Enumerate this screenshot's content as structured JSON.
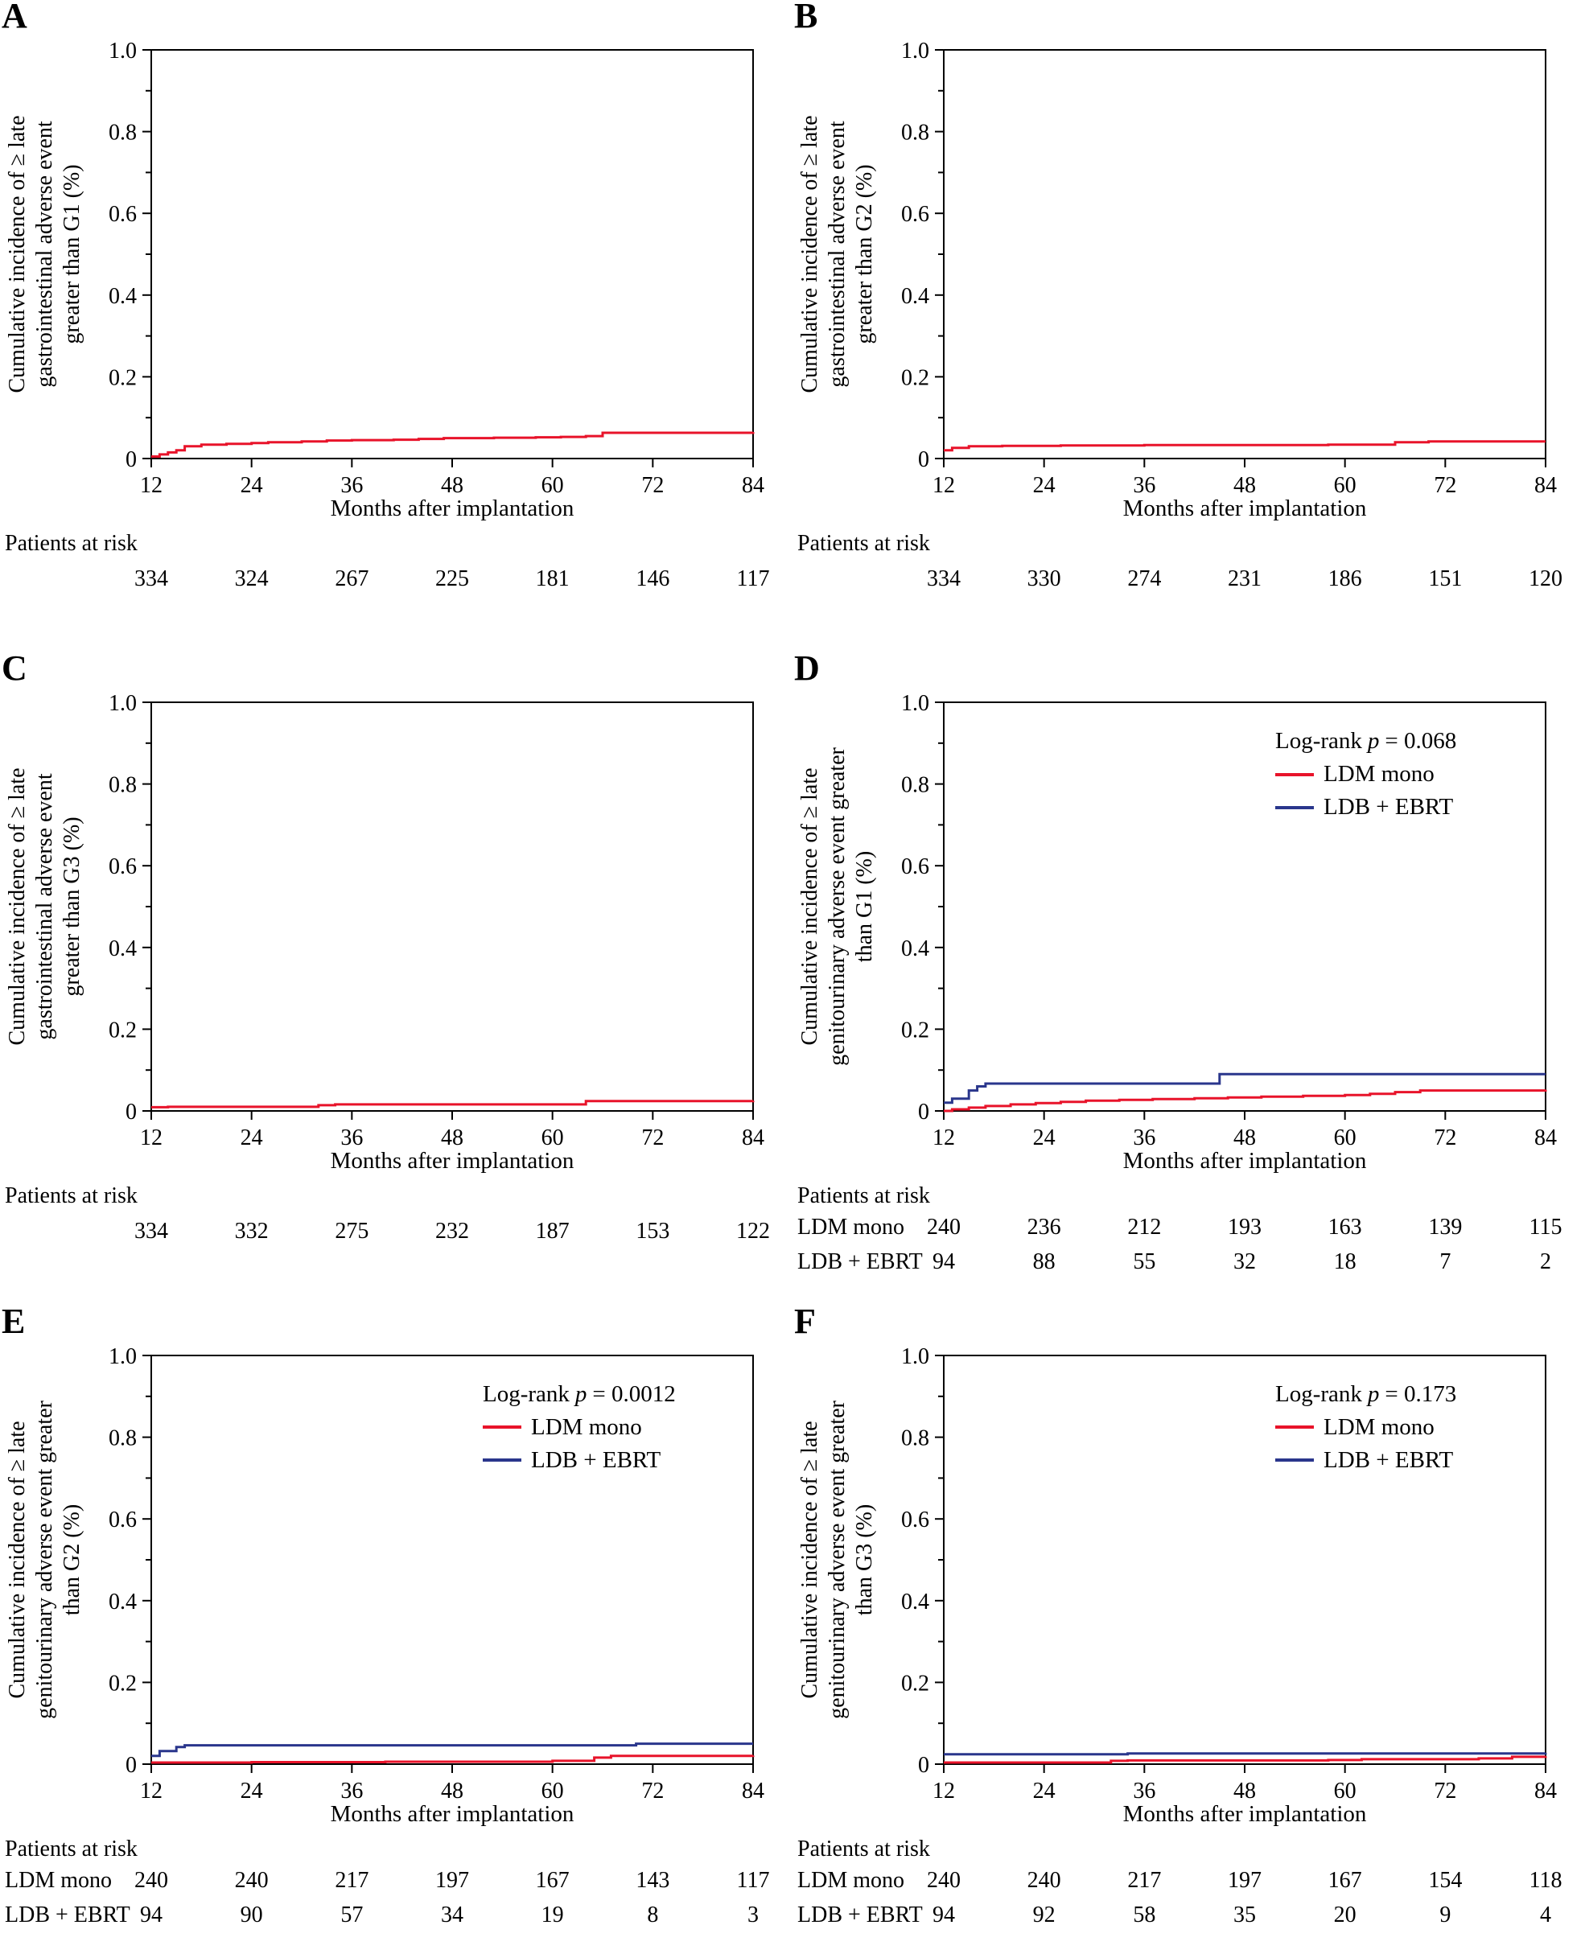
{
  "figure": {
    "patients_at_risk_label": "Patients at risk",
    "colors": {
      "red": "#e8132a",
      "blue": "#2a368c",
      "axis": "#000000"
    }
  },
  "chart_data": [
    {
      "panel": "A",
      "type": "line",
      "step": true,
      "xlabel": "Months after implantation",
      "ylabel_lines": [
        "Cumulative incidence of ≥ late",
        "gastrointestinal adverse event",
        "greater than G1 (%)"
      ],
      "xlim": [
        12,
        84
      ],
      "ylim": [
        0,
        1
      ],
      "xticks": [
        12,
        24,
        36,
        48,
        60,
        72,
        84
      ],
      "yticks": [
        0,
        0.2,
        0.4,
        0.6,
        0.8,
        1.0
      ],
      "ytick_labels": [
        "0",
        "0.2",
        "0.4",
        "0.6",
        "0.8",
        "1.0"
      ],
      "yticks_minor": [
        0.1,
        0.3,
        0.5,
        0.7,
        0.9
      ],
      "series": [
        {
          "name": "",
          "color": "red",
          "points": [
            [
              12,
              0.005
            ],
            [
              13,
              0.01
            ],
            [
              14,
              0.015
            ],
            [
              15,
              0.02
            ],
            [
              16,
              0.03
            ],
            [
              18,
              0.034
            ],
            [
              21,
              0.036
            ],
            [
              24,
              0.038
            ],
            [
              26,
              0.04
            ],
            [
              30,
              0.042
            ],
            [
              33,
              0.044
            ],
            [
              36,
              0.045
            ],
            [
              41,
              0.046
            ],
            [
              44,
              0.048
            ],
            [
              47,
              0.05
            ],
            [
              53,
              0.051
            ],
            [
              58,
              0.052
            ],
            [
              61,
              0.053
            ],
            [
              64,
              0.055
            ],
            [
              66,
              0.063
            ],
            [
              84,
              0.065
            ]
          ]
        }
      ],
      "risk_rows": [
        {
          "label": "",
          "values": [
            334,
            324,
            267,
            225,
            181,
            146,
            117
          ]
        }
      ]
    },
    {
      "panel": "B",
      "type": "line",
      "step": true,
      "xlabel": "Months after implantation",
      "ylabel_lines": [
        "Cumulative incidence of ≥ late",
        "gastrointestinal adverse event",
        "greater than G2 (%)"
      ],
      "xlim": [
        12,
        84
      ],
      "ylim": [
        0,
        1
      ],
      "xticks": [
        12,
        24,
        36,
        48,
        60,
        72,
        84
      ],
      "yticks": [
        0,
        0.2,
        0.4,
        0.6,
        0.8,
        1.0
      ],
      "ytick_labels": [
        "0",
        "0.2",
        "0.4",
        "0.6",
        "0.8",
        "1.0"
      ],
      "yticks_minor": [
        0.1,
        0.3,
        0.5,
        0.7,
        0.9
      ],
      "series": [
        {
          "name": "",
          "color": "red",
          "points": [
            [
              12,
              0.02
            ],
            [
              13,
              0.026
            ],
            [
              15,
              0.03
            ],
            [
              19,
              0.031
            ],
            [
              26,
              0.032
            ],
            [
              36,
              0.033
            ],
            [
              48,
              0.033
            ],
            [
              58,
              0.034
            ],
            [
              66,
              0.04
            ],
            [
              70,
              0.042
            ],
            [
              84,
              0.042
            ]
          ]
        }
      ],
      "risk_rows": [
        {
          "label": "",
          "values": [
            334,
            330,
            274,
            231,
            186,
            151,
            120
          ]
        }
      ]
    },
    {
      "panel": "C",
      "type": "line",
      "step": true,
      "xlabel": "Months after implantation",
      "ylabel_lines": [
        "Cumulative incidence of ≥ late",
        "gastrointestinal adverse event",
        "greater than G3 (%)"
      ],
      "xlim": [
        12,
        84
      ],
      "ylim": [
        0,
        1
      ],
      "xticks": [
        12,
        24,
        36,
        48,
        60,
        72,
        84
      ],
      "yticks": [
        0,
        0.2,
        0.4,
        0.6,
        0.8,
        1.0
      ],
      "ytick_labels": [
        "0",
        "0.2",
        "0.4",
        "0.6",
        "0.8",
        "1.0"
      ],
      "yticks_minor": [
        0.1,
        0.3,
        0.5,
        0.7,
        0.9
      ],
      "series": [
        {
          "name": "",
          "color": "red",
          "points": [
            [
              12,
              0.009
            ],
            [
              14,
              0.01
            ],
            [
              32,
              0.014
            ],
            [
              34,
              0.016
            ],
            [
              64,
              0.024
            ],
            [
              84,
              0.025
            ]
          ]
        }
      ],
      "risk_rows": [
        {
          "label": "",
          "values": [
            334,
            332,
            275,
            232,
            187,
            153,
            122
          ]
        }
      ]
    },
    {
      "panel": "D",
      "type": "line",
      "step": true,
      "xlabel": "Months after implantation",
      "ylabel_lines": [
        "Cumulative incidence of ≥ late",
        "genitourinary adverse event greater",
        "than G1 (%)"
      ],
      "xlim": [
        12,
        84
      ],
      "ylim": [
        0,
        1
      ],
      "xticks": [
        12,
        24,
        36,
        48,
        60,
        72,
        84
      ],
      "yticks": [
        0,
        0.2,
        0.4,
        0.6,
        0.8,
        1.0
      ],
      "ytick_labels": [
        "0",
        "0.2",
        "0.4",
        "0.6",
        "0.8",
        "1.0"
      ],
      "yticks_minor": [
        0.1,
        0.3,
        0.5,
        0.7,
        0.9
      ],
      "legend": {
        "prefix": "Log-rank",
        "pvar": "p",
        "value": "= 0.068",
        "items": [
          {
            "label": "LDM mono",
            "color": "red"
          },
          {
            "label": "LDB + EBRT",
            "color": "blue"
          }
        ]
      },
      "series": [
        {
          "name": "LDM mono",
          "color": "red",
          "points": [
            [
              12,
              0.0
            ],
            [
              13,
              0.004
            ],
            [
              15,
              0.008
            ],
            [
              17,
              0.012
            ],
            [
              20,
              0.016
            ],
            [
              23,
              0.019
            ],
            [
              26,
              0.022
            ],
            [
              29,
              0.025
            ],
            [
              33,
              0.027
            ],
            [
              37,
              0.029
            ],
            [
              42,
              0.031
            ],
            [
              46,
              0.033
            ],
            [
              50,
              0.035
            ],
            [
              55,
              0.037
            ],
            [
              60,
              0.039
            ],
            [
              63,
              0.042
            ],
            [
              66,
              0.046
            ],
            [
              69,
              0.05
            ],
            [
              84,
              0.052
            ]
          ]
        },
        {
          "name": "LDB + EBRT",
          "color": "blue",
          "points": [
            [
              12,
              0.02
            ],
            [
              13,
              0.03
            ],
            [
              15,
              0.05
            ],
            [
              16,
              0.06
            ],
            [
              17,
              0.067
            ],
            [
              45,
              0.09
            ],
            [
              84,
              0.09
            ]
          ]
        }
      ],
      "risk_rows": [
        {
          "label": "LDM mono",
          "values": [
            240,
            236,
            212,
            193,
            163,
            139,
            115
          ]
        },
        {
          "label": "LDB + EBRT",
          "values": [
            94,
            88,
            55,
            32,
            18,
            7,
            2
          ]
        }
      ]
    },
    {
      "panel": "E",
      "type": "line",
      "step": true,
      "xlabel": "Months after implantation",
      "ylabel_lines": [
        "Cumulative incidence of ≥ late",
        "genitourinary adverse event greater",
        "than G2 (%)"
      ],
      "xlim": [
        12,
        84
      ],
      "ylim": [
        0,
        1
      ],
      "xticks": [
        12,
        24,
        36,
        48,
        60,
        72,
        84
      ],
      "yticks": [
        0,
        0.2,
        0.4,
        0.6,
        0.8,
        1.0
      ],
      "ytick_labels": [
        "0",
        "0.2",
        "0.4",
        "0.6",
        "0.8",
        "1.0"
      ],
      "yticks_minor": [
        0.1,
        0.3,
        0.5,
        0.7,
        0.9
      ],
      "legend": {
        "prefix": "Log-rank",
        "pvar": "p",
        "value": "= 0.0012",
        "items": [
          {
            "label": "LDM mono",
            "color": "red"
          },
          {
            "label": "LDB + EBRT",
            "color": "blue"
          }
        ]
      },
      "series": [
        {
          "name": "LDM mono",
          "color": "red",
          "points": [
            [
              12,
              0.004
            ],
            [
              24,
              0.005
            ],
            [
              40,
              0.006
            ],
            [
              60,
              0.008
            ],
            [
              65,
              0.016
            ],
            [
              67,
              0.02
            ],
            [
              84,
              0.021
            ]
          ]
        },
        {
          "name": "LDB + EBRT",
          "color": "blue",
          "points": [
            [
              12,
              0.02
            ],
            [
              13,
              0.032
            ],
            [
              15,
              0.042
            ],
            [
              16,
              0.046
            ],
            [
              70,
              0.05
            ],
            [
              84,
              0.05
            ]
          ]
        }
      ],
      "risk_rows": [
        {
          "label": "LDM mono",
          "values": [
            240,
            240,
            217,
            197,
            167,
            143,
            117
          ]
        },
        {
          "label": "LDB + EBRT",
          "values": [
            94,
            90,
            57,
            34,
            19,
            8,
            3
          ]
        }
      ]
    },
    {
      "panel": "F",
      "type": "line",
      "step": true,
      "xlabel": "Months after implantation",
      "ylabel_lines": [
        "Cumulative incidence of ≥ late",
        "genitourinary adverse event greater",
        "than G3 (%)"
      ],
      "xlim": [
        12,
        84
      ],
      "ylim": [
        0,
        1
      ],
      "xticks": [
        12,
        24,
        36,
        48,
        60,
        72,
        84
      ],
      "yticks": [
        0,
        0.2,
        0.4,
        0.6,
        0.8,
        1.0
      ],
      "ytick_labels": [
        "0",
        "0.2",
        "0.4",
        "0.6",
        "0.8",
        "1.0"
      ],
      "yticks_minor": [
        0.1,
        0.3,
        0.5,
        0.7,
        0.9
      ],
      "legend": {
        "prefix": "Log-rank",
        "pvar": "p",
        "value": "= 0.173",
        "items": [
          {
            "label": "LDM mono",
            "color": "red"
          },
          {
            "label": "LDB + EBRT",
            "color": "blue"
          }
        ]
      },
      "series": [
        {
          "name": "LDM mono",
          "color": "red",
          "points": [
            [
              12,
              0.004
            ],
            [
              32,
              0.008
            ],
            [
              34,
              0.009
            ],
            [
              58,
              0.01
            ],
            [
              62,
              0.012
            ],
            [
              76,
              0.014
            ],
            [
              80,
              0.018
            ],
            [
              84,
              0.019
            ]
          ]
        },
        {
          "name": "LDB + EBRT",
          "color": "blue",
          "points": [
            [
              12,
              0.024
            ],
            [
              34,
              0.026
            ],
            [
              84,
              0.027
            ]
          ]
        }
      ],
      "risk_rows": [
        {
          "label": "LDM mono",
          "values": [
            240,
            240,
            217,
            197,
            167,
            154,
            118
          ]
        },
        {
          "label": "LDB + EBRT",
          "values": [
            94,
            92,
            58,
            35,
            20,
            9,
            4
          ]
        }
      ]
    }
  ]
}
